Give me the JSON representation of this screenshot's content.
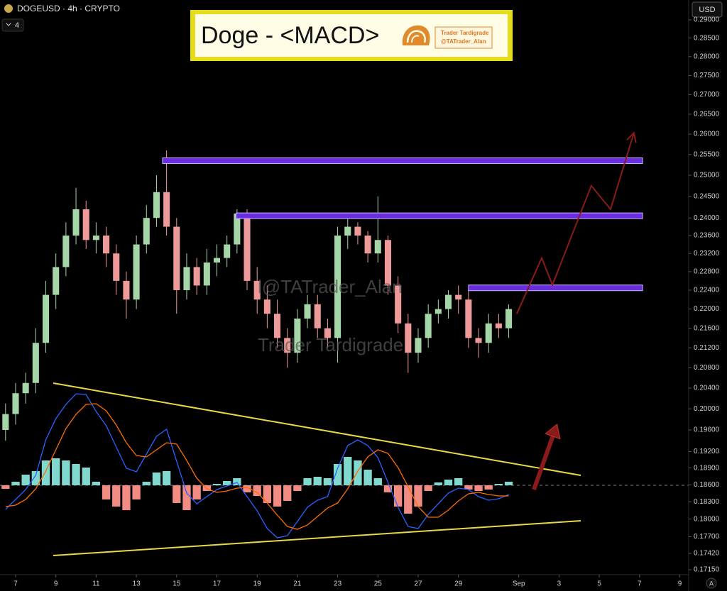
{
  "chart_data": [
    {
      "type": "candlestick",
      "title": "DOGEUSD · 4h · CRYPTO",
      "indicator_count": 4,
      "currency": "USD",
      "scale_mode": "A",
      "banner": {
        "title": "Doge - <MACD>",
        "brand": "Trader Tardigrade",
        "handle": "@TATrader_Alan"
      },
      "watermark": {
        "handle": "l@TATrader_Alan",
        "name": "Trader Tardigrade"
      },
      "x": [
        6.5,
        7,
        7.5,
        8,
        8.5,
        9,
        9.5,
        10,
        10.5,
        11,
        11.5,
        12,
        12.5,
        13,
        13.5,
        14,
        14.5,
        15,
        15.5,
        16,
        16.5,
        17,
        17.5,
        18,
        18.5,
        19,
        19.5,
        20,
        20.5,
        21,
        21.5,
        22,
        22.5,
        23,
        23.5,
        24,
        24.5,
        25,
        25.5,
        26,
        26.5,
        27,
        27.5,
        28,
        28.5,
        29,
        29.5,
        30,
        30.5,
        31,
        31.5
      ],
      "open": [
        0.196,
        0.199,
        0.203,
        0.205,
        0.213,
        0.223,
        0.229,
        0.236,
        0.242,
        0.235,
        0.236,
        0.232,
        0.226,
        0.222,
        0.234,
        0.24,
        0.246,
        0.238,
        0.224,
        0.229,
        0.225,
        0.23,
        0.231,
        0.234,
        0.241,
        0.226,
        0.222,
        0.219,
        0.214,
        0.211,
        0.218,
        0.221,
        0.216,
        0.214,
        0.236,
        0.238,
        0.236,
        0.232,
        0.235,
        0.225,
        0.217,
        0.211,
        0.214,
        0.219,
        0.22,
        0.223,
        0.222,
        0.214,
        0.213,
        0.217,
        0.216
      ],
      "high": [
        0.201,
        0.205,
        0.207,
        0.216,
        0.226,
        0.232,
        0.239,
        0.247,
        0.244,
        0.239,
        0.238,
        0.234,
        0.228,
        0.236,
        0.243,
        0.25,
        0.256,
        0.24,
        0.232,
        0.231,
        0.233,
        0.234,
        0.236,
        0.242,
        0.242,
        0.229,
        0.225,
        0.222,
        0.216,
        0.22,
        0.223,
        0.223,
        0.218,
        0.238,
        0.241,
        0.239,
        0.237,
        0.245,
        0.236,
        0.227,
        0.219,
        0.216,
        0.221,
        0.222,
        0.224,
        0.225,
        0.224,
        0.216,
        0.219,
        0.219,
        0.221
      ],
      "low": [
        0.194,
        0.197,
        0.201,
        0.203,
        0.211,
        0.22,
        0.227,
        0.234,
        0.233,
        0.232,
        0.229,
        0.223,
        0.218,
        0.22,
        0.232,
        0.238,
        0.236,
        0.219,
        0.222,
        0.223,
        0.223,
        0.227,
        0.229,
        0.232,
        0.224,
        0.219,
        0.216,
        0.212,
        0.208,
        0.209,
        0.216,
        0.214,
        0.212,
        0.209,
        0.233,
        0.234,
        0.23,
        0.23,
        0.223,
        0.215,
        0.207,
        0.209,
        0.212,
        0.217,
        0.218,
        0.219,
        0.212,
        0.21,
        0.211,
        0.214,
        0.214
      ],
      "close": [
        0.199,
        0.203,
        0.205,
        0.213,
        0.223,
        0.229,
        0.236,
        0.242,
        0.235,
        0.236,
        0.232,
        0.226,
        0.222,
        0.234,
        0.24,
        0.246,
        0.238,
        0.224,
        0.229,
        0.225,
        0.23,
        0.231,
        0.234,
        0.241,
        0.226,
        0.222,
        0.219,
        0.214,
        0.211,
        0.218,
        0.221,
        0.216,
        0.214,
        0.236,
        0.238,
        0.236,
        0.232,
        0.235,
        0.225,
        0.217,
        0.211,
        0.214,
        0.219,
        0.22,
        0.223,
        0.222,
        0.214,
        0.213,
        0.217,
        0.216,
        0.22
      ],
      "up_color": "#a5d6a7",
      "down_color": "#ef9a9a",
      "log_scale": true,
      "xlim": [
        6.224,
        40.44
      ],
      "xticks": [
        7,
        9,
        11,
        13,
        15,
        17,
        19,
        21,
        23,
        25,
        27,
        29,
        {
          "value": 32,
          "label": "Sep"
        },
        {
          "value": 34,
          "label": "3"
        },
        {
          "value": 36,
          "label": "5"
        },
        {
          "value": 38,
          "label": "7"
        },
        {
          "value": 40,
          "label": "9"
        }
      ],
      "ylim": [
        0.1715,
        0.29
      ],
      "yticks": [
        {
          "value": 0.29,
          "label": "0.29000"
        },
        {
          "value": 0.285,
          "label": "0.28500"
        },
        {
          "value": 0.28,
          "label": "0.28000"
        },
        {
          "value": 0.275,
          "label": "0.27500"
        },
        {
          "value": 0.27,
          "label": "0.27000"
        },
        {
          "value": 0.265,
          "label": "0.26500"
        },
        {
          "value": 0.26,
          "label": "0.26000"
        },
        {
          "value": 0.255,
          "label": "0.25500"
        },
        {
          "value": 0.25,
          "label": "0.25000"
        },
        {
          "value": 0.245,
          "label": "0.24500"
        },
        {
          "value": 0.24,
          "label": "0.24000"
        },
        {
          "value": 0.236,
          "label": "0.23600"
        },
        {
          "value": 0.232,
          "label": "0.23200"
        },
        {
          "value": 0.228,
          "label": "0.22800"
        },
        {
          "value": 0.224,
          "label": "0.22400"
        },
        {
          "value": 0.22,
          "label": "0.22000"
        },
        {
          "value": 0.216,
          "label": "0.21600"
        },
        {
          "value": 0.212,
          "label": "0.21200"
        },
        {
          "value": 0.208,
          "label": "0.20800"
        },
        {
          "value": 0.204,
          "label": "0.20400"
        },
        {
          "value": 0.2,
          "label": "0.20000"
        },
        {
          "value": 0.196,
          "label": "0.19600"
        },
        {
          "value": 0.192,
          "label": "0.19200"
        },
        {
          "value": 0.189,
          "label": "0.18900"
        },
        {
          "value": 0.186,
          "label": "0.18600"
        },
        {
          "value": 0.183,
          "label": "0.18300"
        },
        {
          "value": 0.18,
          "label": "0.18000"
        },
        {
          "value": 0.177,
          "label": "0.17700"
        },
        {
          "value": 0.1742,
          "label": "0.17420"
        },
        {
          "value": 0.1715,
          "label": "0.17150"
        }
      ],
      "levels": [
        {
          "price": 0.2535,
          "start": 14.3,
          "end": 38.15
        },
        {
          "price": 0.2405,
          "start": 17.95,
          "end": 38.15
        },
        {
          "price": 0.2245,
          "start": 29.5,
          "end": 38.15
        }
      ],
      "level_color": "#6a2ce0",
      "projection": {
        "x": [
          31.9,
          33.14,
          33.67,
          35.6,
          36.56,
          37.72
        ],
        "values": [
          0.219,
          0.231,
          0.2251,
          0.2475,
          0.242,
          0.2603
        ]
      },
      "projection_color": "#8b1a1a"
    },
    {
      "type": "macd",
      "x": [
        6.5,
        7,
        7.5,
        8,
        8.5,
        9,
        9.5,
        10,
        10.5,
        11,
        11.5,
        12,
        12.5,
        13,
        13.5,
        14,
        14.5,
        15,
        15.5,
        16,
        16.5,
        17,
        17.5,
        18,
        18.5,
        19,
        19.5,
        20,
        20.5,
        21,
        21.5,
        22,
        22.5,
        23,
        23.5,
        24,
        24.5,
        25,
        25.5,
        26,
        26.5,
        27,
        27.5,
        28,
        28.5,
        29,
        29.5,
        30,
        30.5,
        31,
        31.5
      ],
      "ylim": [
        -1.16,
        1.44
      ],
      "histogram": [
        -0.05,
        0.05,
        0.15,
        0.2,
        0.35,
        0.38,
        0.35,
        0.3,
        0.25,
        0.05,
        -0.2,
        -0.3,
        -0.35,
        -0.2,
        0.05,
        0.18,
        0.2,
        -0.25,
        -0.35,
        -0.2,
        -0.08,
        0.02,
        0.06,
        0.1,
        -0.1,
        -0.15,
        -0.25,
        -0.3,
        -0.22,
        -0.08,
        0.1,
        0.12,
        0.1,
        0.3,
        0.4,
        0.35,
        0.22,
        0.1,
        -0.1,
        -0.3,
        -0.4,
        -0.3,
        -0.08,
        0.04,
        0.08,
        0.1,
        -0.06,
        -0.08,
        -0.06,
        0.02,
        0.05
      ],
      "hist_up_color": "#80d8cf",
      "hist_down_color": "#f28b82",
      "series": [
        {
          "color": "#2962ff",
          "values": [
            -0.34,
            -0.2,
            -0.06,
            0.14,
            0.64,
            0.94,
            1.14,
            1.29,
            1.28,
            1.04,
            0.84,
            0.54,
            0.24,
            0.19,
            0.44,
            0.69,
            0.79,
            0.34,
            -0.11,
            -0.26,
            -0.16,
            -0.06,
            -0.01,
            0.04,
            -0.16,
            -0.36,
            -0.61,
            -0.74,
            -0.71,
            -0.51,
            -0.31,
            -0.21,
            -0.16,
            0.24,
            0.56,
            0.64,
            0.56,
            0.39,
            0.04,
            -0.31,
            -0.58,
            -0.61,
            -0.41,
            -0.26,
            -0.11,
            -0.04,
            -0.06,
            -0.16,
            -0.21,
            -0.19,
            -0.13
          ]
        },
        {
          "color": "#ff6d00",
          "values": [
            -0.3,
            -0.28,
            -0.2,
            -0.05,
            0.2,
            0.5,
            0.8,
            1.0,
            1.14,
            1.15,
            1.05,
            0.85,
            0.6,
            0.42,
            0.4,
            0.5,
            0.6,
            0.58,
            0.35,
            0.1,
            -0.05,
            -0.1,
            -0.08,
            -0.04,
            -0.03,
            -0.1,
            -0.25,
            -0.42,
            -0.58,
            -0.62,
            -0.56,
            -0.44,
            -0.32,
            -0.25,
            -0.05,
            0.2,
            0.4,
            0.5,
            0.45,
            0.25,
            -0.02,
            -0.3,
            -0.45,
            -0.45,
            -0.35,
            -0.22,
            -0.12,
            -0.1,
            -0.13,
            -0.15,
            -0.15
          ]
        }
      ],
      "trendlines": [
        {
          "x": [
            8.87,
            35.08
          ],
          "values": [
            1.44,
            0.14
          ]
        },
        {
          "x": [
            8.87,
            35.08
          ],
          "values": [
            -0.99,
            -0.5
          ]
        }
      ],
      "trendline_color": "#e8d84a",
      "arrow": {
        "x": [
          32.75,
          33.9
        ],
        "values": [
          -0.06,
          0.86
        ]
      },
      "arrow_color": "#8b1a1a"
    }
  ]
}
